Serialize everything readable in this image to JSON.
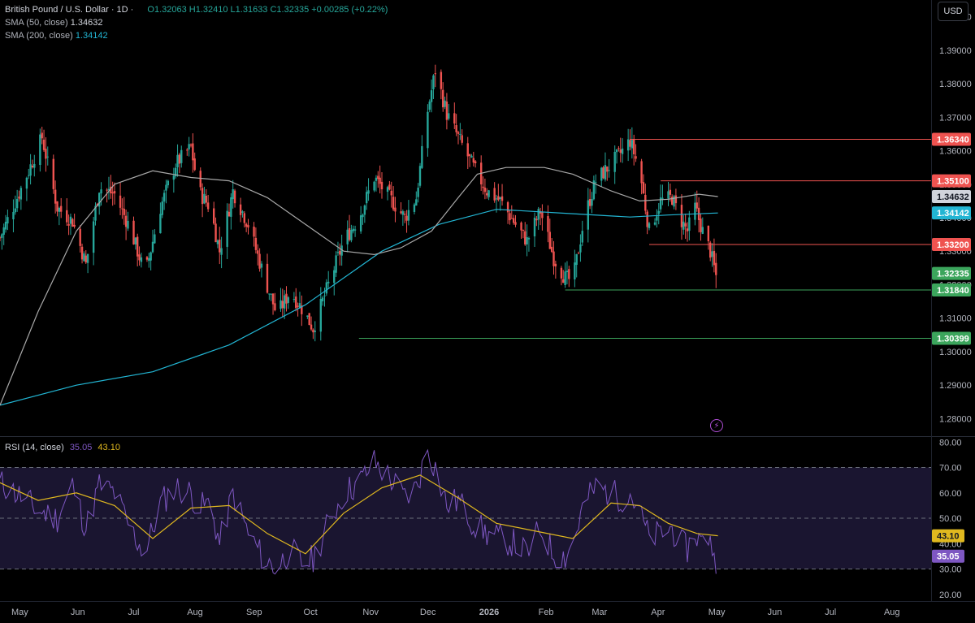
{
  "header": {
    "symbol": "British Pound / U.S. Dollar · 1D ·",
    "ohlc": "O1.32063 H1.32410 L1.31633 C1.32335 +0.00285 (+0.22%)",
    "sma50_label": "SMA (50, close)",
    "sma50_value": "1.34632",
    "sma200_label": "SMA (200, close)",
    "sma200_value": "1.34142",
    "currency": "USD"
  },
  "rsi_legend": {
    "label": "RSI (14, close)",
    "rsi_value": "35.05",
    "ma_value": "43.10"
  },
  "colors": {
    "up": "#26a69a",
    "down": "#ef5350",
    "sma50": "#a8a8a8",
    "sma200": "#22b5d3",
    "rsi": "#7e57c2",
    "rsi_ma": "#e0b81f",
    "resistance": "#ef5350",
    "support": "#3ba55c"
  },
  "chart_data": [
    {
      "type": "candlestick",
      "title": "British Pound / U.S. Dollar · 1D",
      "ylim": [
        1.275,
        1.405
      ],
      "y_ticks": [
        "1.40000",
        "1.39000",
        "1.38000",
        "1.37000",
        "1.36000",
        "1.35000",
        "1.34000",
        "1.33000",
        "1.32000",
        "1.31000",
        "1.30000",
        "1.29000",
        "1.28000"
      ],
      "x_ticks": [
        "May",
        "Jun",
        "Jul",
        "Aug",
        "Sep",
        "Oct",
        "Nov",
        "Dec",
        "2026",
        "Feb",
        "Mar",
        "Apr",
        "May",
        "Jun",
        "Jul",
        "Aug",
        "Sep",
        "Oct"
      ],
      "price_anchors": [
        [
          0,
          1.334
        ],
        [
          15,
          1.354
        ],
        [
          22,
          1.364
        ],
        [
          30,
          1.343
        ],
        [
          38,
          1.339
        ],
        [
          45,
          1.326
        ],
        [
          52,
          1.349
        ],
        [
          60,
          1.347
        ],
        [
          68,
          1.337
        ],
        [
          76,
          1.323
        ],
        [
          84,
          1.343
        ],
        [
          92,
          1.356
        ],
        [
          100,
          1.361
        ],
        [
          104,
          1.348
        ],
        [
          110,
          1.343
        ],
        [
          115,
          1.33
        ],
        [
          122,
          1.348
        ],
        [
          130,
          1.338
        ],
        [
          138,
          1.323
        ],
        [
          145,
          1.311
        ],
        [
          152,
          1.318
        ],
        [
          158,
          1.313
        ],
        [
          164,
          1.307
        ],
        [
          172,
          1.32
        ],
        [
          180,
          1.333
        ],
        [
          188,
          1.34
        ],
        [
          196,
          1.352
        ],
        [
          204,
          1.346
        ],
        [
          212,
          1.34
        ],
        [
          218,
          1.346
        ],
        [
          224,
          1.372
        ],
        [
          228,
          1.384
        ],
        [
          234,
          1.371
        ],
        [
          240,
          1.364
        ],
        [
          248,
          1.355
        ],
        [
          255,
          1.348
        ],
        [
          262,
          1.345
        ],
        [
          270,
          1.338
        ],
        [
          276,
          1.333
        ],
        [
          283,
          1.342
        ],
        [
          290,
          1.328
        ],
        [
          296,
          1.322
        ],
        [
          300,
          1.321
        ],
        [
          306,
          1.34
        ],
        [
          312,
          1.351
        ],
        [
          320,
          1.356
        ],
        [
          326,
          1.36
        ],
        [
          330,
          1.363
        ],
        [
          335,
          1.354
        ],
        [
          340,
          1.336
        ],
        [
          346,
          1.345
        ],
        [
          352,
          1.346
        ],
        [
          356,
          1.34
        ],
        [
          360,
          1.336
        ],
        [
          364,
          1.343
        ],
        [
          368,
          1.336
        ],
        [
          372,
          1.33
        ],
        [
          375,
          1.3226
        ],
        [
          376,
          1.3234
        ]
      ],
      "sma50": {
        "name": "SMA (50, close)",
        "last": 1.34632,
        "points": [
          [
            0,
            1.284
          ],
          [
            20,
            1.312
          ],
          [
            40,
            1.336
          ],
          [
            60,
            1.35
          ],
          [
            80,
            1.354
          ],
          [
            100,
            1.352
          ],
          [
            120,
            1.351
          ],
          [
            140,
            1.346
          ],
          [
            160,
            1.338
          ],
          [
            180,
            1.33
          ],
          [
            196,
            1.329
          ],
          [
            210,
            1.331
          ],
          [
            226,
            1.336
          ],
          [
            240,
            1.346
          ],
          [
            250,
            1.353
          ],
          [
            265,
            1.355
          ],
          [
            285,
            1.355
          ],
          [
            300,
            1.353
          ],
          [
            320,
            1.348
          ],
          [
            335,
            1.345
          ],
          [
            350,
            1.3455
          ],
          [
            366,
            1.347
          ],
          [
            376,
            1.3463
          ]
        ]
      },
      "sma200": {
        "name": "SMA (200, close)",
        "last": 1.34142,
        "points": [
          [
            0,
            1.284
          ],
          [
            40,
            1.29
          ],
          [
            80,
            1.294
          ],
          [
            120,
            1.302
          ],
          [
            160,
            1.314
          ],
          [
            200,
            1.33
          ],
          [
            230,
            1.338
          ],
          [
            260,
            1.3425
          ],
          [
            300,
            1.3412
          ],
          [
            330,
            1.3402
          ],
          [
            350,
            1.3408
          ],
          [
            376,
            1.3414
          ]
        ]
      },
      "levels": [
        {
          "price": 1.3634,
          "label": "1.36340",
          "kind": "resistance",
          "from": 330
        },
        {
          "price": 1.351,
          "label": "1.35100",
          "kind": "resistance",
          "from": 346
        },
        {
          "price": 1.332,
          "label": "1.33200",
          "kind": "resistance",
          "from": 340
        },
        {
          "price": 1.3184,
          "label": "1.31840",
          "kind": "support",
          "from": 296
        },
        {
          "price": 1.30399,
          "label": "1.30399",
          "kind": "support",
          "from": 188
        }
      ],
      "price_labels": [
        {
          "price": 1.34632,
          "label": "1.34632",
          "kind": "sma50"
        },
        {
          "price": 1.34142,
          "label": "1.34142",
          "kind": "sma200"
        },
        {
          "price": 1.32335,
          "label": "1.32335",
          "kind": "last"
        }
      ]
    },
    {
      "type": "line",
      "title": "RSI (14, close)",
      "ylim": [
        18,
        82
      ],
      "y_ticks": [
        "80.00",
        "70.00",
        "60.00",
        "50.00",
        "40.00",
        "30.00",
        "20.00"
      ],
      "bands": [
        30,
        50,
        70
      ],
      "rsi_anchors": [
        [
          0,
          64
        ],
        [
          12,
          58
        ],
        [
          20,
          53
        ],
        [
          30,
          50
        ],
        [
          38,
          63
        ],
        [
          45,
          46
        ],
        [
          52,
          63
        ],
        [
          60,
          60
        ],
        [
          68,
          46
        ],
        [
          76,
          36
        ],
        [
          84,
          56
        ],
        [
          92,
          62
        ],
        [
          100,
          60
        ],
        [
          104,
          54
        ],
        [
          110,
          56
        ],
        [
          115,
          40
        ],
        [
          122,
          60
        ],
        [
          130,
          44
        ],
        [
          138,
          34
        ],
        [
          145,
          30
        ],
        [
          152,
          38
        ],
        [
          158,
          32
        ],
        [
          164,
          34
        ],
        [
          172,
          48
        ],
        [
          180,
          60
        ],
        [
          188,
          64
        ],
        [
          196,
          72
        ],
        [
          204,
          66
        ],
        [
          212,
          58
        ],
        [
          218,
          62
        ],
        [
          224,
          77
        ],
        [
          228,
          70
        ],
        [
          234,
          55
        ],
        [
          240,
          57
        ],
        [
          248,
          48
        ],
        [
          255,
          44
        ],
        [
          262,
          42
        ],
        [
          270,
          40
        ],
        [
          276,
          36
        ],
        [
          283,
          46
        ],
        [
          290,
          36
        ],
        [
          296,
          35
        ],
        [
          300,
          40
        ],
        [
          306,
          56
        ],
        [
          312,
          62
        ],
        [
          320,
          60
        ],
        [
          326,
          58
        ],
        [
          330,
          60
        ],
        [
          335,
          52
        ],
        [
          340,
          42
        ],
        [
          346,
          44
        ],
        [
          352,
          46
        ],
        [
          356,
          40
        ],
        [
          360,
          38
        ],
        [
          364,
          44
        ],
        [
          368,
          40
        ],
        [
          372,
          44
        ],
        [
          374,
          33
        ],
        [
          376,
          35.05
        ]
      ],
      "rsi_ma_anchors": [
        [
          0,
          64
        ],
        [
          20,
          57
        ],
        [
          40,
          60
        ],
        [
          60,
          55
        ],
        [
          80,
          42
        ],
        [
          100,
          54
        ],
        [
          120,
          55
        ],
        [
          140,
          44
        ],
        [
          160,
          36
        ],
        [
          180,
          52
        ],
        [
          200,
          62
        ],
        [
          220,
          67
        ],
        [
          240,
          58
        ],
        [
          260,
          48
        ],
        [
          280,
          45
        ],
        [
          300,
          42
        ],
        [
          320,
          56
        ],
        [
          335,
          55
        ],
        [
          350,
          48
        ],
        [
          365,
          44
        ],
        [
          376,
          43.1
        ]
      ],
      "labels": [
        {
          "value": 43.1,
          "label": "43.10",
          "kind": "rsi_ma"
        },
        {
          "value": 35.05,
          "label": "35.05",
          "kind": "rsi"
        }
      ]
    }
  ]
}
